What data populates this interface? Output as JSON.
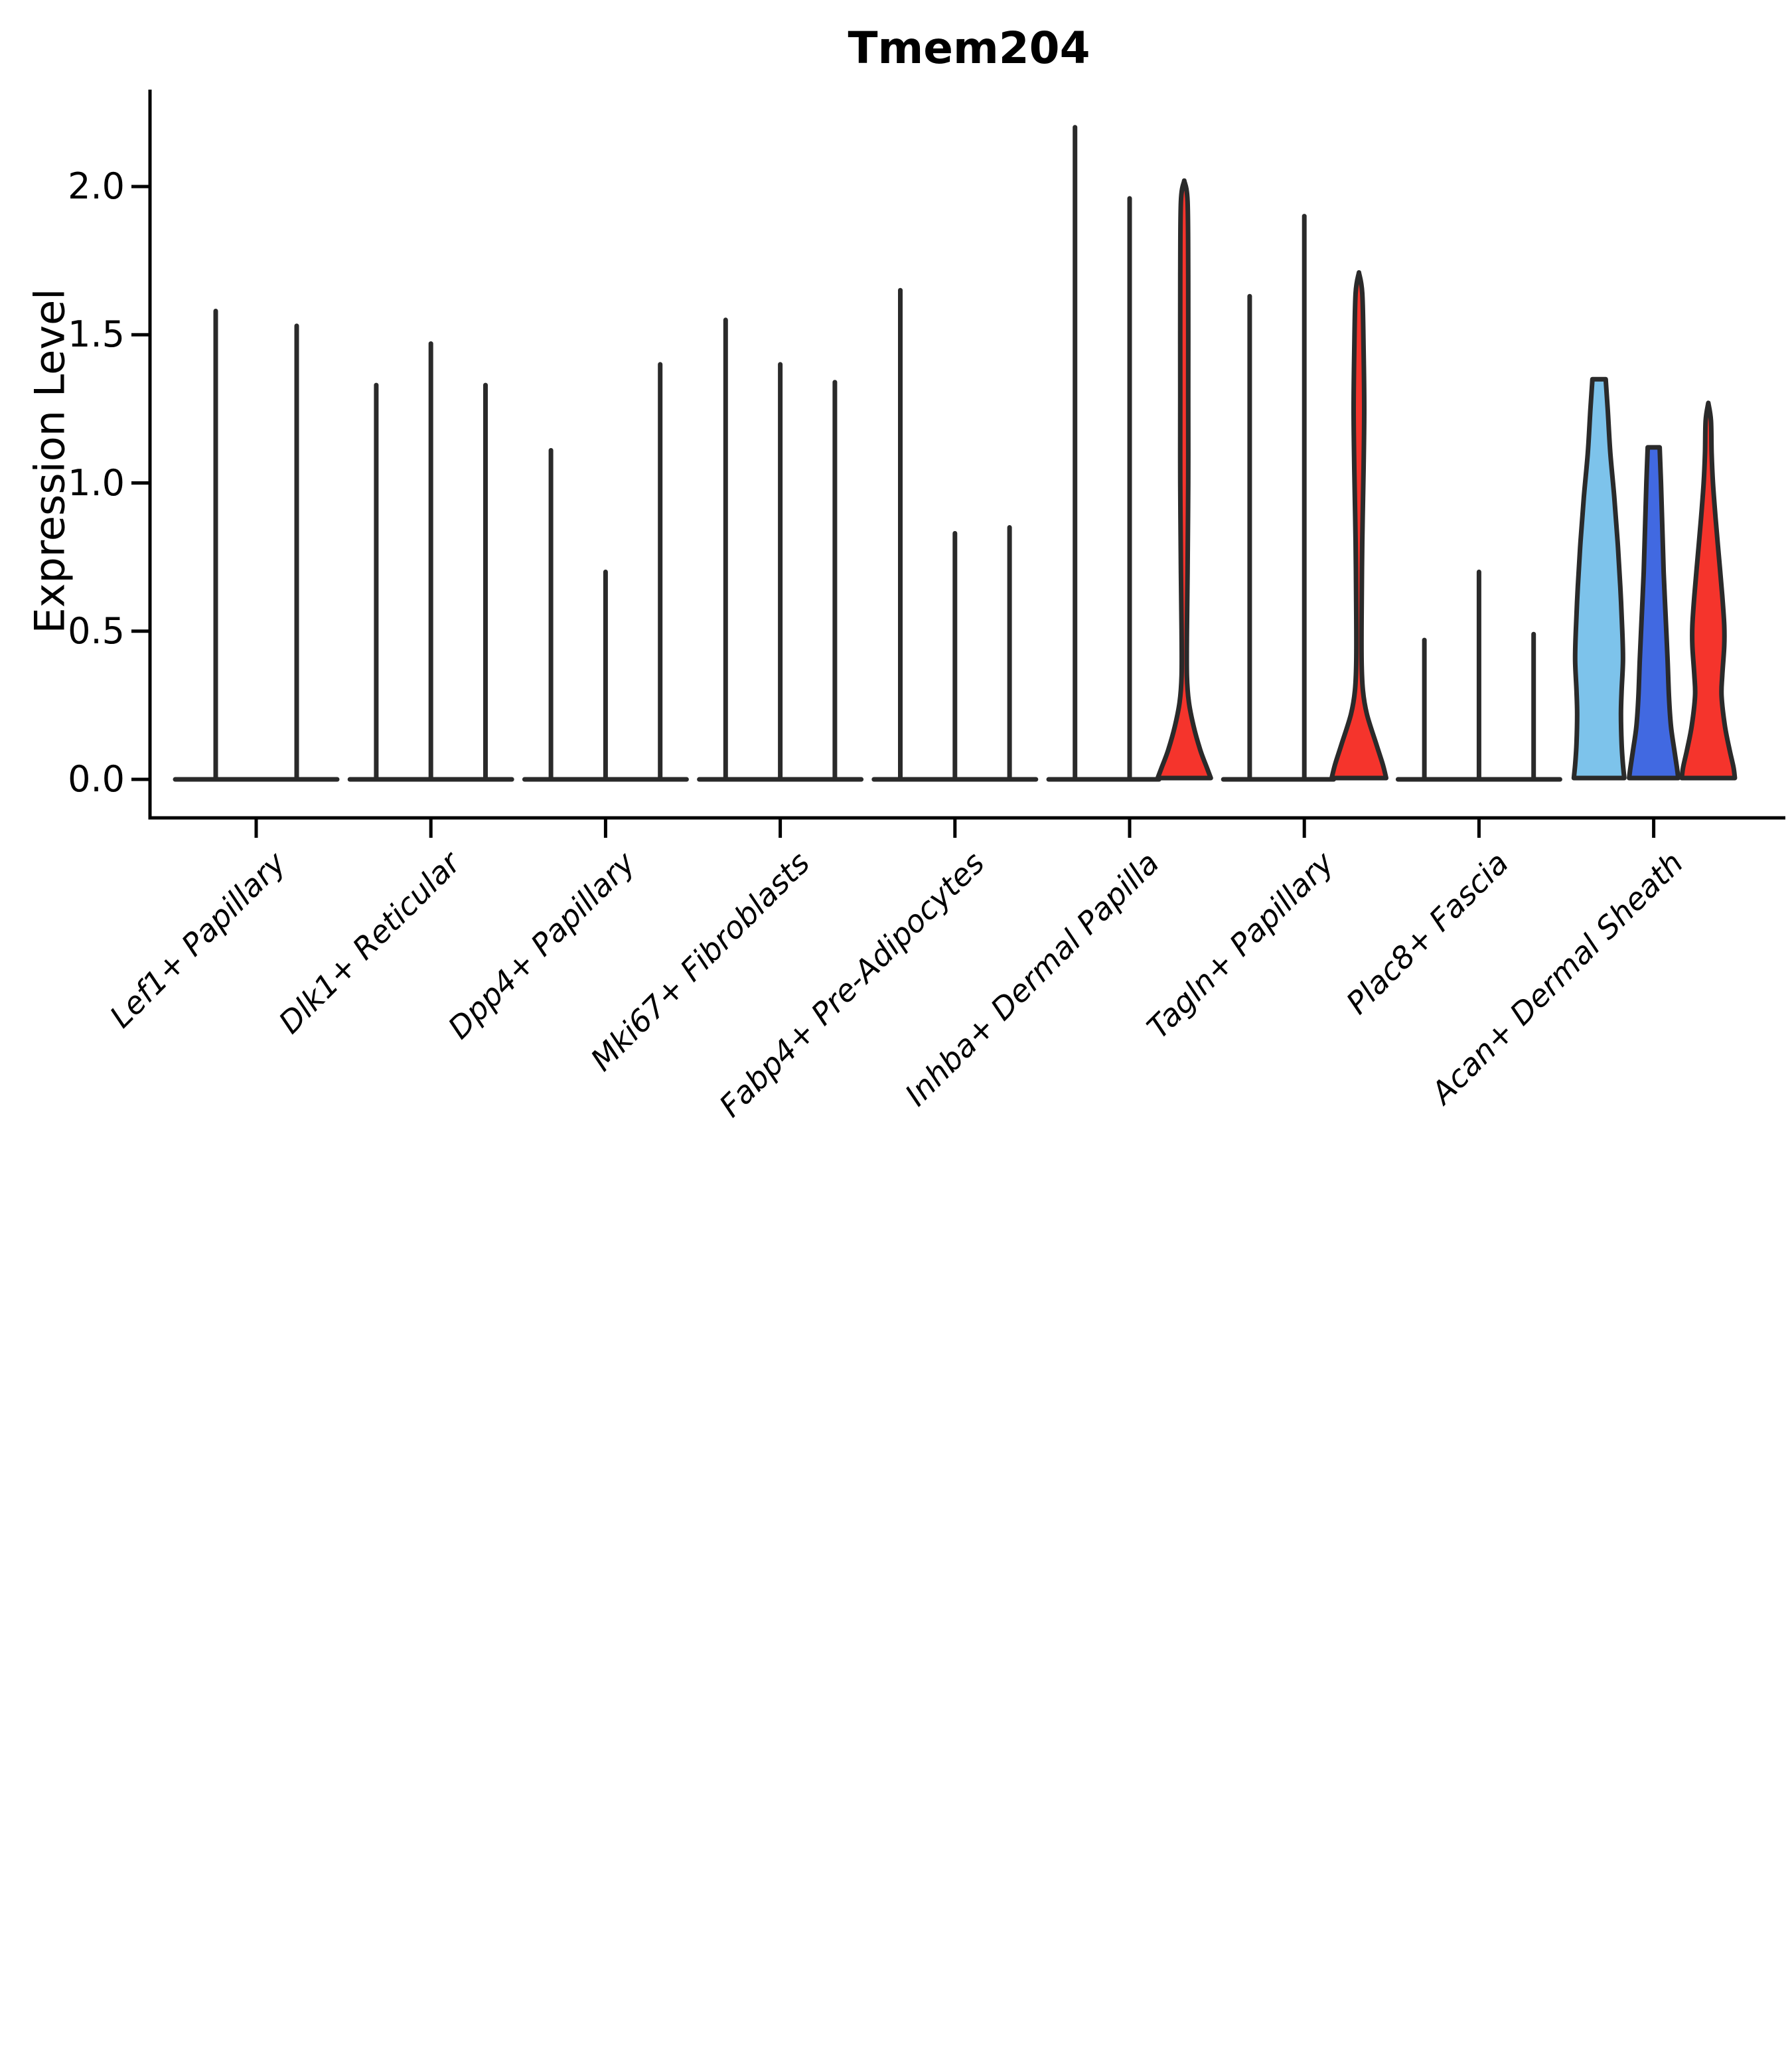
{
  "chart_data": {
    "type": "violin",
    "title": "Tmem204",
    "ylabel": "Expression Level",
    "xlabel": "",
    "grid": false,
    "legend": "none",
    "ytick_labels": [
      "0.0",
      "0.5",
      "1.0",
      "1.5",
      "2.0"
    ],
    "ytick_values": [
      0.0,
      0.5,
      1.0,
      1.5,
      2.0
    ],
    "ylim": [
      -0.13,
      2.33
    ],
    "palette": {
      "skyblue": "#7DC3EB",
      "royalblue": "#4169E1",
      "red": "#F5342C",
      "outline": "#2A2A2A",
      "axis": "#000000"
    },
    "groups": [
      {
        "label": "Lef1+ Papillary",
        "violins": [
          {
            "max": 1.58,
            "kind": "spike"
          },
          {
            "max": 1.53,
            "kind": "spike"
          }
        ]
      },
      {
        "label": "Dlk1+ Reticular",
        "violins": [
          {
            "max": 1.33,
            "kind": "spike"
          },
          {
            "max": 1.47,
            "kind": "spike"
          },
          {
            "max": 1.33,
            "kind": "spike"
          }
        ]
      },
      {
        "label": "Dpp4+ Papillary",
        "violins": [
          {
            "max": 1.11,
            "kind": "spike"
          },
          {
            "max": 0.7,
            "kind": "spike"
          },
          {
            "max": 1.4,
            "kind": "spike"
          }
        ]
      },
      {
        "label": "Mki67+ Fibroblasts",
        "violins": [
          {
            "max": 1.55,
            "kind": "spike"
          },
          {
            "max": 1.4,
            "kind": "spike"
          },
          {
            "max": 1.34,
            "kind": "spike"
          }
        ]
      },
      {
        "label": "Fabp4+ Pre-Adipocytes",
        "violins": [
          {
            "max": 1.65,
            "kind": "spike"
          },
          {
            "max": 0.83,
            "kind": "spike"
          },
          {
            "max": 0.85,
            "kind": "spike"
          }
        ]
      },
      {
        "label": "Inhba+ Dermal Papilla",
        "violins": [
          {
            "max": 2.2,
            "kind": "spike"
          },
          {
            "max": 1.96,
            "kind": "spike"
          },
          {
            "max": 2.02,
            "kind": "shape",
            "fill": "red",
            "profile": [
              [
                2.02,
                0
              ],
              [
                1.95,
                5
              ],
              [
                1.7,
                6
              ],
              [
                1.3,
                6
              ],
              [
                1.0,
                6
              ],
              [
                0.7,
                5
              ],
              [
                0.5,
                4
              ],
              [
                0.35,
                4
              ],
              [
                0.26,
                7
              ],
              [
                0.18,
                14
              ],
              [
                0.1,
                24
              ],
              [
                0.04,
                34
              ],
              [
                0.0,
                40
              ]
            ]
          }
        ]
      },
      {
        "label": "Tagln+ Papillary",
        "violins": [
          {
            "max": 1.63,
            "kind": "spike"
          },
          {
            "max": 1.9,
            "kind": "spike"
          },
          {
            "max": 1.71,
            "kind": "shape",
            "fill": "red",
            "profile": [
              [
                1.71,
                0
              ],
              [
                1.64,
                5
              ],
              [
                1.45,
                7
              ],
              [
                1.25,
                8
              ],
              [
                1.05,
                7
              ],
              [
                0.8,
                5
              ],
              [
                0.55,
                4
              ],
              [
                0.4,
                4
              ],
              [
                0.3,
                6
              ],
              [
                0.22,
                12
              ],
              [
                0.12,
                26
              ],
              [
                0.05,
                36
              ],
              [
                0.0,
                41
              ]
            ]
          }
        ]
      },
      {
        "label": "Plac8+ Fascia",
        "violins": [
          {
            "max": 0.47,
            "kind": "spike"
          },
          {
            "max": 0.7,
            "kind": "spike"
          },
          {
            "max": 0.49,
            "kind": "spike"
          }
        ]
      },
      {
        "label": "Acan+ Dermal Sheath",
        "violins": [
          {
            "max": 1.35,
            "kind": "shape",
            "fill": "skyblue",
            "cap": "flat",
            "profile": [
              [
                1.35,
                10
              ],
              [
                1.25,
                13
              ],
              [
                1.1,
                17
              ],
              [
                0.95,
                23
              ],
              [
                0.8,
                28
              ],
              [
                0.65,
                32
              ],
              [
                0.5,
                35
              ],
              [
                0.4,
                36
              ],
              [
                0.3,
                34
              ],
              [
                0.22,
                33
              ],
              [
                0.12,
                34
              ],
              [
                0.05,
                36
              ],
              [
                0.0,
                38
              ]
            ]
          },
          {
            "max": 1.12,
            "kind": "shape",
            "fill": "royalblue",
            "cap": "flat",
            "profile": [
              [
                1.12,
                9
              ],
              [
                1.0,
                11
              ],
              [
                0.85,
                13
              ],
              [
                0.7,
                15
              ],
              [
                0.55,
                18
              ],
              [
                0.4,
                21
              ],
              [
                0.28,
                23
              ],
              [
                0.18,
                26
              ],
              [
                0.1,
                31
              ],
              [
                0.04,
                35
              ],
              [
                0.0,
                37
              ]
            ]
          },
          {
            "max": 1.27,
            "kind": "shape",
            "fill": "red",
            "profile": [
              [
                1.27,
                0
              ],
              [
                1.21,
                4
              ],
              [
                1.1,
                5
              ],
              [
                1.0,
                7
              ],
              [
                0.88,
                11
              ],
              [
                0.75,
                16
              ],
              [
                0.62,
                21
              ],
              [
                0.52,
                24
              ],
              [
                0.45,
                24
              ],
              [
                0.35,
                21
              ],
              [
                0.28,
                20
              ],
              [
                0.18,
                25
              ],
              [
                0.1,
                32
              ],
              [
                0.04,
                38
              ],
              [
                0.0,
                40
              ]
            ]
          }
        ]
      }
    ]
  }
}
